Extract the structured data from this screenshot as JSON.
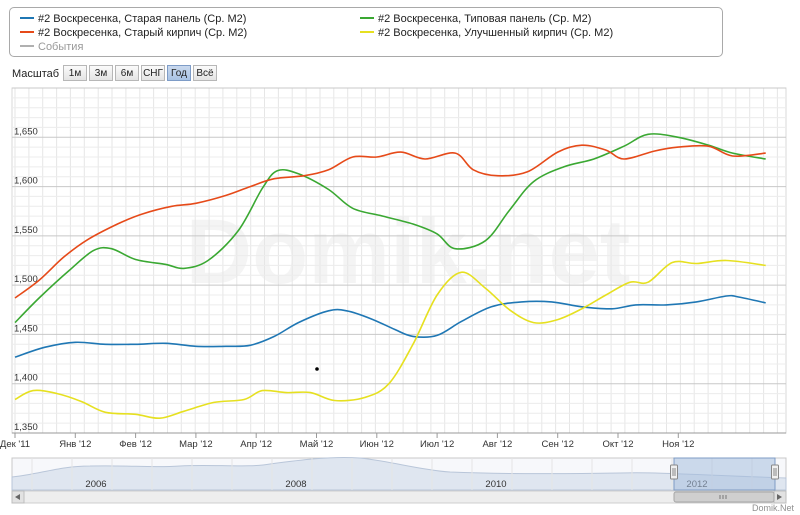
{
  "legend": {
    "items": [
      {
        "label": "#2 Воскресенка, Старая панель (Ср. М2)",
        "color": "#1f77b4"
      },
      {
        "label": "#2 Воскресенка, Старый кирпич (Ср. М2)",
        "color": "#e64a19"
      },
      {
        "label": "События",
        "color": "#b0b0b0"
      },
      {
        "label": "#2 Воскресенка, Типовая панель (Ср. М2)",
        "color": "#3aa832"
      },
      {
        "label": "#2 Воскресенка, Улучшенный кирпич (Ср. М2)",
        "color": "#e6e020"
      }
    ]
  },
  "zoom": {
    "label": "Масштаб",
    "buttons": [
      "1м",
      "3м",
      "6м",
      "СНГ",
      "Год",
      "Всё"
    ],
    "active": "Год"
  },
  "watermark": "Domik.net",
  "credit": "Domik.Net",
  "chart_data": {
    "type": "line",
    "x_ticks": [
      "Дек '11",
      "Янв '12",
      "Фев '12",
      "Мар '12",
      "Апр '12",
      "Май '12",
      "Июн '12",
      "Июл '12",
      "Авг '12",
      "Сен '12",
      "Окт '12",
      "Ноя '12"
    ],
    "y_ticks": [
      "1,350",
      "1,400",
      "1,450",
      "1,500",
      "1,550",
      "1,600",
      "1,650"
    ],
    "ylim": [
      1350,
      1700
    ],
    "x_range_months": [
      0,
      12.45
    ],
    "grid": true,
    "legend_position": "top",
    "series": [
      {
        "name": "#2 Воскресенка, Старая панель (Ср. М2)",
        "color": "#1f77b4",
        "points": [
          [
            0,
            1427
          ],
          [
            0.5,
            1437
          ],
          [
            1,
            1442
          ],
          [
            1.5,
            1440
          ],
          [
            2,
            1440
          ],
          [
            2.5,
            1441
          ],
          [
            3,
            1438
          ],
          [
            3.5,
            1438
          ],
          [
            3.9,
            1439
          ],
          [
            4.3,
            1448
          ],
          [
            4.7,
            1462
          ],
          [
            5.2,
            1474
          ],
          [
            5.5,
            1474
          ],
          [
            5.9,
            1466
          ],
          [
            6.3,
            1455
          ],
          [
            6.6,
            1448
          ],
          [
            7.0,
            1449
          ],
          [
            7.4,
            1463
          ],
          [
            7.9,
            1478
          ],
          [
            8.4,
            1483
          ],
          [
            8.9,
            1483
          ],
          [
            9.4,
            1478
          ],
          [
            9.9,
            1476
          ],
          [
            10.3,
            1480
          ],
          [
            10.8,
            1480
          ],
          [
            11.3,
            1483
          ],
          [
            11.8,
            1489
          ],
          [
            12.0,
            1488
          ],
          [
            12.45,
            1482
          ]
        ]
      },
      {
        "name": "#2 Воскресенка, Типовая панель (Ср. М2)",
        "color": "#3aa832",
        "points": [
          [
            0,
            1462
          ],
          [
            0.4,
            1487
          ],
          [
            0.9,
            1515
          ],
          [
            1.3,
            1535
          ],
          [
            1.6,
            1537
          ],
          [
            2.0,
            1526
          ],
          [
            2.5,
            1521
          ],
          [
            2.8,
            1517
          ],
          [
            3.2,
            1525
          ],
          [
            3.7,
            1555
          ],
          [
            4.1,
            1598
          ],
          [
            4.35,
            1616
          ],
          [
            4.7,
            1613
          ],
          [
            5.2,
            1597
          ],
          [
            5.6,
            1578
          ],
          [
            6.1,
            1570
          ],
          [
            6.6,
            1562
          ],
          [
            7.0,
            1552
          ],
          [
            7.3,
            1537
          ],
          [
            7.8,
            1545
          ],
          [
            8.2,
            1576
          ],
          [
            8.6,
            1605
          ],
          [
            9.1,
            1620
          ],
          [
            9.6,
            1628
          ],
          [
            10.1,
            1641
          ],
          [
            10.5,
            1653
          ],
          [
            11.0,
            1650
          ],
          [
            11.5,
            1642
          ],
          [
            11.9,
            1634
          ],
          [
            12.45,
            1628
          ]
        ]
      },
      {
        "name": "#2 Воскресенка, Старый кирпич (Ср. М2)",
        "color": "#e64a19",
        "points": [
          [
            0,
            1487
          ],
          [
            0.4,
            1505
          ],
          [
            0.8,
            1528
          ],
          [
            1.2,
            1546
          ],
          [
            1.7,
            1562
          ],
          [
            2.1,
            1572
          ],
          [
            2.6,
            1580
          ],
          [
            3.0,
            1583
          ],
          [
            3.5,
            1591
          ],
          [
            3.9,
            1600
          ],
          [
            4.3,
            1608
          ],
          [
            4.8,
            1611
          ],
          [
            5.2,
            1617
          ],
          [
            5.6,
            1630
          ],
          [
            6.0,
            1630
          ],
          [
            6.4,
            1635
          ],
          [
            6.8,
            1628
          ],
          [
            7.3,
            1634
          ],
          [
            7.6,
            1617
          ],
          [
            8.0,
            1611
          ],
          [
            8.5,
            1615
          ],
          [
            9.0,
            1635
          ],
          [
            9.4,
            1642
          ],
          [
            9.8,
            1637
          ],
          [
            10.1,
            1628
          ],
          [
            10.6,
            1636
          ],
          [
            11.0,
            1640
          ],
          [
            11.5,
            1641
          ],
          [
            11.9,
            1631
          ],
          [
            12.45,
            1634
          ]
        ]
      },
      {
        "name": "#2 Воскресенка, Улучшенный кирпич (Ср. М2)",
        "color": "#e6e020",
        "points": [
          [
            0,
            1384
          ],
          [
            0.3,
            1393
          ],
          [
            0.7,
            1390
          ],
          [
            1.1,
            1382
          ],
          [
            1.5,
            1371
          ],
          [
            2.0,
            1369
          ],
          [
            2.4,
            1365
          ],
          [
            2.8,
            1372
          ],
          [
            3.3,
            1381
          ],
          [
            3.8,
            1384
          ],
          [
            4.1,
            1393
          ],
          [
            4.5,
            1391
          ],
          [
            4.9,
            1391
          ],
          [
            5.3,
            1383
          ],
          [
            5.8,
            1386
          ],
          [
            6.2,
            1400
          ],
          [
            6.6,
            1440
          ],
          [
            7.0,
            1490
          ],
          [
            7.4,
            1513
          ],
          [
            7.8,
            1497
          ],
          [
            8.2,
            1475
          ],
          [
            8.6,
            1462
          ],
          [
            9.0,
            1465
          ],
          [
            9.4,
            1476
          ],
          [
            9.8,
            1490
          ],
          [
            10.2,
            1503
          ],
          [
            10.5,
            1503
          ],
          [
            10.9,
            1523
          ],
          [
            11.3,
            1522
          ],
          [
            11.8,
            1525
          ],
          [
            12.45,
            1520
          ]
        ]
      }
    ],
    "navigator": {
      "year_labels": [
        "2006",
        "2008",
        "2010",
        "2012"
      ]
    }
  }
}
